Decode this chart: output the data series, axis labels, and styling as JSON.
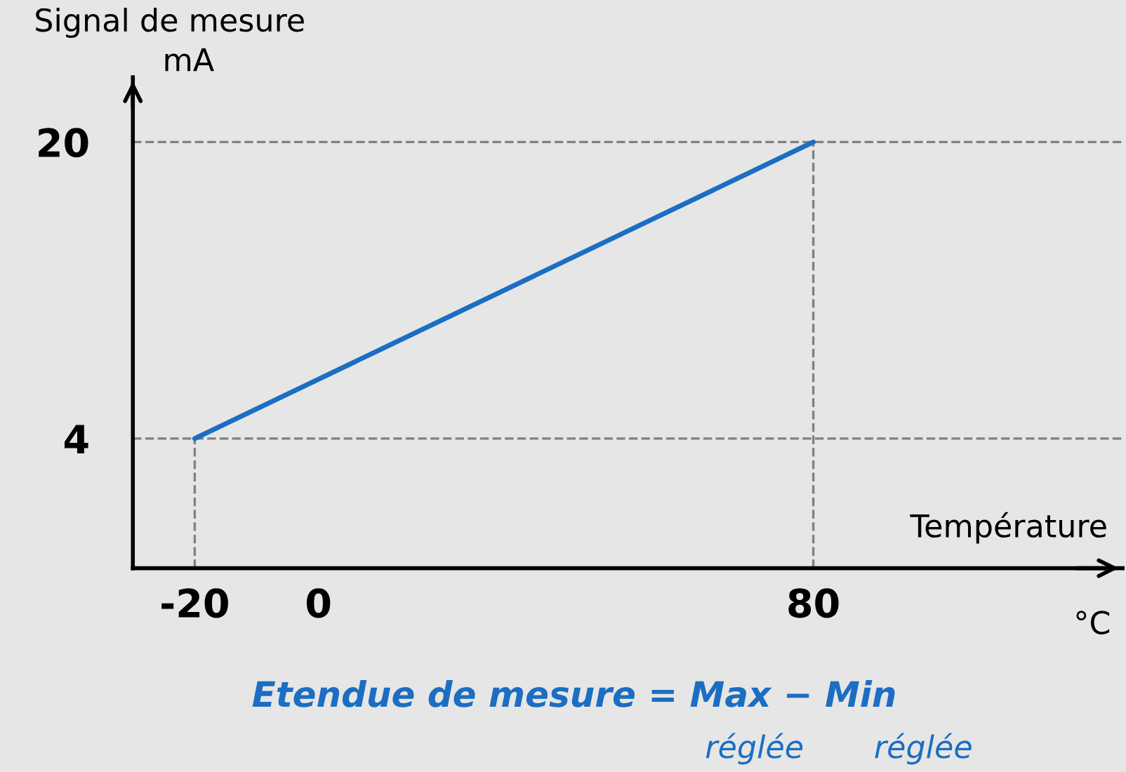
{
  "chart_data": {
    "type": "line",
    "x": [
      -20,
      80
    ],
    "series": [
      {
        "color": "#1b6ec2",
        "values": [
          4,
          20
        ]
      }
    ],
    "xlim": [
      -30,
      130
    ],
    "ylim": [
      -3,
      23.5
    ],
    "xticks": [
      -20,
      0,
      80
    ],
    "yticks": [
      4,
      20
    ],
    "xlabel": "Température",
    "ylabel": "Signal de mesure",
    "ref_lines": [
      {
        "axis": "x",
        "value": -20,
        "color": "#808080",
        "line_style": "dashed"
      },
      {
        "axis": "x",
        "value": 80,
        "color": "#808080",
        "line_style": "dashed"
      },
      {
        "axis": "y",
        "value": 4,
        "color": "#808080",
        "line_style": "dashed"
      },
      {
        "axis": "y",
        "value": 20,
        "color": "#808080",
        "line_style": "dashed"
      }
    ],
    "annotations": [
      "mA",
      "°C",
      "Etendue de mesure = Max − Min",
      "réglée",
      "réglée"
    ],
    "grid": false,
    "legend": false,
    "marker": "none",
    "line_style": "solid"
  }
}
